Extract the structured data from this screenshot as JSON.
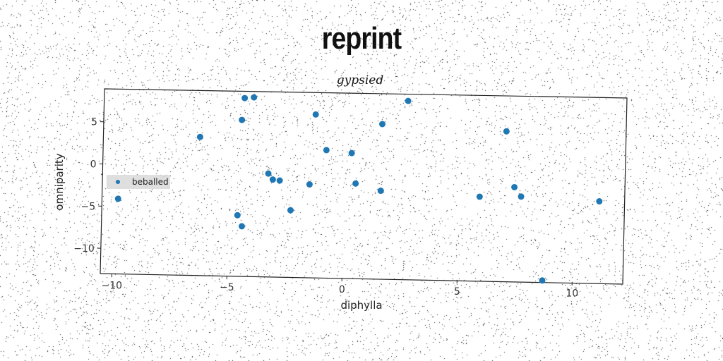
{
  "title": "reprint",
  "chart_data": {
    "type": "scatter",
    "subtitle": "gypsied",
    "xlabel": "diphylla",
    "ylabel": "omniparity",
    "xlim": [
      -10.5,
      12.2
    ],
    "ylim": [
      -13,
      8.9
    ],
    "xticks": [
      -10,
      -5,
      0,
      5,
      10
    ],
    "yticks": [
      -10,
      -5,
      0,
      5
    ],
    "grid": false,
    "legend_position": "center-left",
    "series": [
      {
        "name": "beballed",
        "color": "#1f77b4",
        "x": [
          -9.8,
          -6.3,
          -4.5,
          -4.4,
          -4.0,
          -4.6,
          -4.4,
          -3.3,
          -3.1,
          -2.8,
          -2.3,
          -1.5,
          -1.3,
          -0.8,
          0.3,
          0.5,
          1.6,
          1.6,
          2.7,
          5.9,
          7.0,
          7.4,
          7.7,
          8.7,
          11.1
        ],
        "y": [
          -4.1,
          3.4,
          5.5,
          8.1,
          8.2,
          -5.8,
          -7.1,
          -0.8,
          -1.5,
          -1.6,
          -5.1,
          -2.0,
          6.3,
          2.1,
          1.8,
          -1.8,
          5.3,
          -2.6,
          8.1,
          -3.1,
          4.7,
          -1.9,
          -3.0,
          -12.9,
          -3.4
        ]
      }
    ]
  }
}
